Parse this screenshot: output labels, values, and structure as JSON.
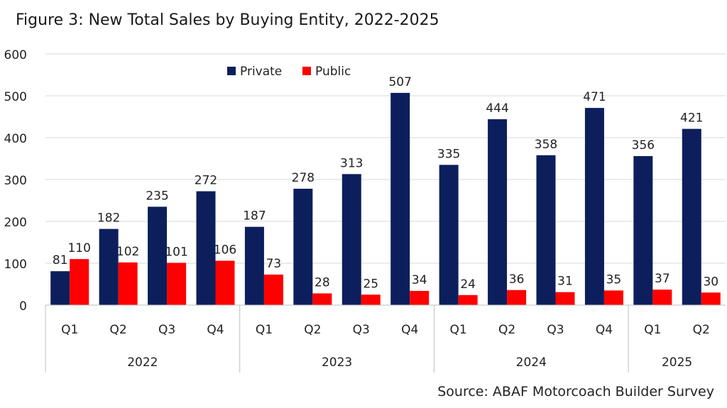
{
  "title": "Figure 3: New Total Sales by Buying Entity, 2022-2025",
  "source": "Source: ABAF Motorcoach Builder Survey",
  "colors": {
    "private": "#0c1f5c",
    "public": "#ff0000"
  },
  "chart_data": {
    "type": "bar",
    "title": "Figure 3: New Total Sales by Buying Entity, 2022-2025",
    "xlabel": "",
    "ylabel": "",
    "ylim": [
      0,
      600
    ],
    "yticks": [
      "0",
      "100",
      "200",
      "300",
      "400",
      "500",
      "600"
    ],
    "grid": true,
    "legend_position": "top",
    "categories": [
      "Q1",
      "Q2",
      "Q3",
      "Q4",
      "Q1",
      "Q2",
      "Q3",
      "Q4",
      "Q1",
      "Q2",
      "Q3",
      "Q4",
      "Q1",
      "Q2"
    ],
    "groups": [
      {
        "label": "2022",
        "count": 4
      },
      {
        "label": "2023",
        "count": 4
      },
      {
        "label": "2024",
        "count": 4
      },
      {
        "label": "2025",
        "count": 2
      }
    ],
    "series": [
      {
        "name": "Private",
        "values": [
          81,
          182,
          235,
          272,
          187,
          278,
          313,
          507,
          335,
          444,
          358,
          471,
          356,
          421
        ]
      },
      {
        "name": "Public",
        "values": [
          110,
          102,
          101,
          106,
          73,
          28,
          25,
          34,
          24,
          36,
          31,
          35,
          37,
          30
        ]
      }
    ]
  }
}
